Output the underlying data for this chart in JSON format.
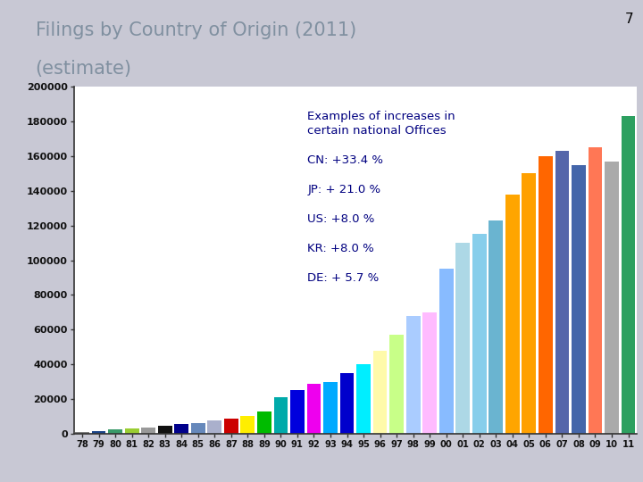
{
  "title_line1": "Filings by Country of Origin (2011)",
  "title_line2": "(estimate)",
  "slide_number": "7",
  "years": [
    "78",
    "79",
    "80",
    "81",
    "82",
    "83",
    "84",
    "85",
    "86",
    "87",
    "88",
    "89",
    "90",
    "91",
    "92",
    "93",
    "94",
    "95",
    "96",
    "97",
    "98",
    "99",
    "00",
    "01",
    "02",
    "03",
    "04",
    "05",
    "06",
    "07",
    "08",
    "09",
    "10",
    "11"
  ],
  "values": [
    1200,
    1800,
    2500,
    3200,
    3800,
    4500,
    5500,
    6200,
    7500,
    9000,
    10500,
    13000,
    21000,
    25000,
    29000,
    30000,
    35000,
    40000,
    48000,
    57000,
    68000,
    70000,
    95000,
    110000,
    115000,
    123000,
    138000,
    150000,
    160000,
    163000,
    155000,
    165000,
    157000,
    183000
  ],
  "colors": [
    "#808080",
    "#1a4488",
    "#3a9a6a",
    "#9acd32",
    "#999999",
    "#111111",
    "#00008b",
    "#6688bb",
    "#aab0cc",
    "#cc0000",
    "#ffee00",
    "#00bb00",
    "#00aaaa",
    "#0000dd",
    "#ee00ee",
    "#00aaff",
    "#0000cc",
    "#00eeff",
    "#fffaaa",
    "#c8ff88",
    "#aaccff",
    "#ffbbff",
    "#88bbff",
    "#add8e6",
    "#87ceeb",
    "#6ab4d0",
    "#ffa500",
    "#ffa000",
    "#ff6600",
    "#5566aa",
    "#4466aa",
    "#ff7755",
    "#aaaaaa",
    "#2da060"
  ],
  "annotation_title": "Examples of increases in\ncertain national Offices",
  "annotations": [
    "CN: +33.4 %",
    "JP: + 21.0 %",
    "US: +8.0 %",
    "KR: +8.0 %",
    "DE: + 5.7 %"
  ],
  "annotation_color": "#000080",
  "ylim": [
    0,
    200000
  ],
  "yticks": [
    0,
    20000,
    40000,
    60000,
    80000,
    100000,
    120000,
    140000,
    160000,
    180000,
    200000
  ],
  "ytick_labels": [
    "0",
    "20000",
    "40000",
    "60000",
    "80000",
    "100000",
    "120000",
    "140000",
    "160000",
    "180000",
    "200000"
  ],
  "bg_color": "#c8c8d4",
  "plot_bg": "#ffffff"
}
